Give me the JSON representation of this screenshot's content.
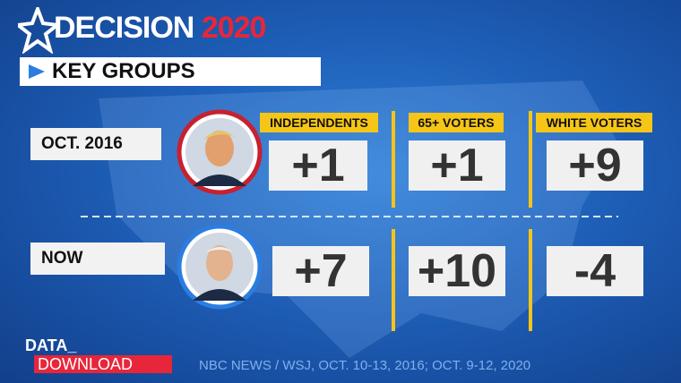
{
  "header": {
    "brand_word": "DECISION",
    "brand_year": "2020",
    "section": "KEY GROUPS"
  },
  "table": {
    "columns": [
      "INDEPENDENTS",
      "65+ VOTERS",
      "WHITE VOTERS"
    ],
    "rows": [
      {
        "label": "OCT. 2016",
        "cells": [
          "+1",
          "+1",
          "+9"
        ]
      },
      {
        "label": "NOW",
        "cells": [
          "+7",
          "+10",
          "-4"
        ]
      }
    ]
  },
  "footer": {
    "logo_top": "DATA_",
    "logo_bottom": "DOWNLOAD",
    "source": "NBC NEWS / WSJ, OCT. 10-13, 2016; OCT. 9-12, 2020"
  }
}
